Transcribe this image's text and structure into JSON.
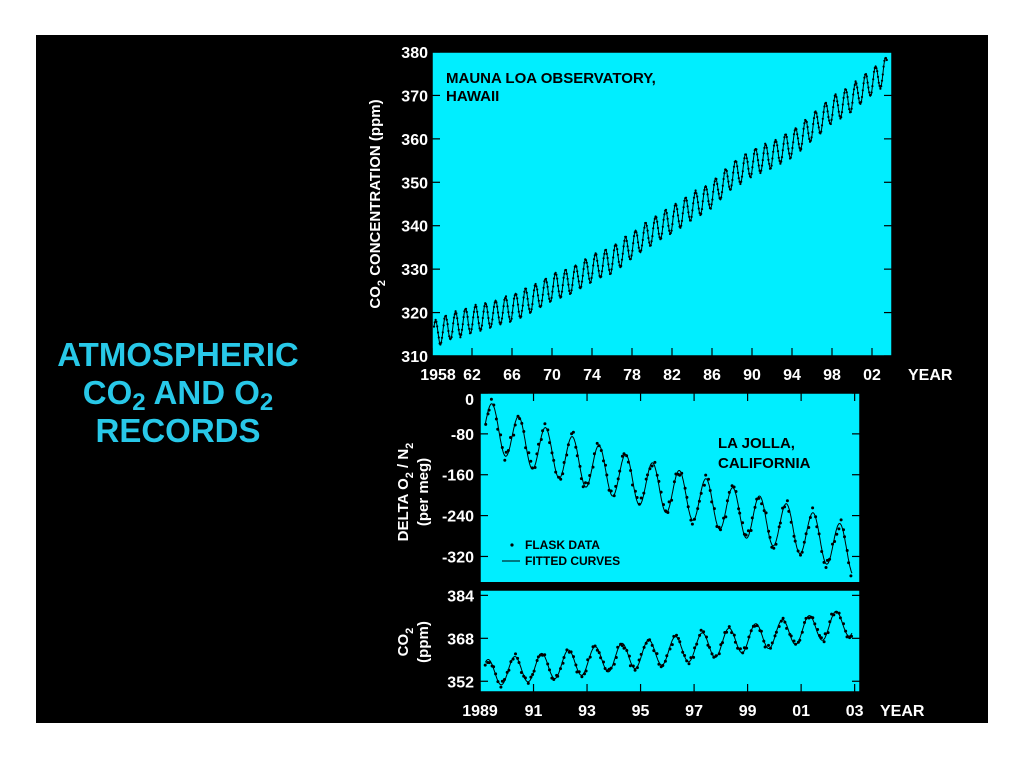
{
  "title": {
    "line1": "ATMOSPHERIC",
    "line2_a": "CO",
    "line2_sub1": "2",
    "line2_b": " AND O",
    "line2_sub2": "2",
    "line3": "RECORDS",
    "color": "#28c8e8"
  },
  "colors": {
    "background": "#000000",
    "plot_fill": "#00eeff",
    "ink": "#000000",
    "tick_text": "#ffffff"
  },
  "chart_data": [
    {
      "type": "line",
      "annotation_line1": "MAUNA LOA OBSERVATORY,",
      "annotation_line2": "HAWAII",
      "ylabel_pre": "CO",
      "ylabel_sub": "2",
      "ylabel_post": " CONCENTRATION (ppm)",
      "xlabel": "YEAR",
      "xlim": [
        1958,
        2004
      ],
      "ylim": [
        310,
        380
      ],
      "xticks": [
        1958,
        1962,
        1966,
        1970,
        1974,
        1978,
        1982,
        1986,
        1990,
        1994,
        1998,
        2002
      ],
      "xtick_labels": [
        "1958",
        "62",
        "66",
        "70",
        "74",
        "78",
        "82",
        "86",
        "90",
        "94",
        "98",
        "02"
      ],
      "yticks": [
        310,
        320,
        330,
        340,
        350,
        360,
        370,
        380
      ],
      "ytick_labels": [
        "310",
        "320",
        "330",
        "340",
        "350",
        "360",
        "370",
        "380"
      ],
      "series": [
        {
          "x": [
            1958.2,
            1960,
            1962,
            1964,
            1966,
            1968,
            1970,
            1972,
            1974,
            1976,
            1978,
            1980,
            1982,
            1984,
            1986,
            1988,
            1990,
            1992,
            1994,
            1996,
            1998,
            2000,
            2002,
            2003.5
          ],
          "y": [
            315.0,
            316.9,
            318.4,
            319.6,
            321.1,
            323.0,
            325.7,
            327.5,
            330.2,
            332.1,
            335.4,
            338.7,
            341.4,
            344.4,
            347.1,
            351.5,
            354.4,
            356.4,
            358.8,
            362.6,
            366.7,
            369.4,
            373.1,
            376.0
          ],
          "seasonal_amplitude": 3
        }
      ]
    },
    {
      "type": "scatter",
      "annotation_line1": "LA JOLLA,",
      "annotation_line2": "CALIFORNIA",
      "ylabel_line1_pre": "DELTA O",
      "ylabel_line1_sub1": "2",
      "ylabel_line1_mid": " / N",
      "ylabel_line1_sub2": "2",
      "ylabel_line2": "(per meg)",
      "xlim": [
        1989,
        2003.2
      ],
      "ylim": [
        -370,
        0
      ],
      "yticks": [
        0,
        -80,
        -160,
        -240,
        -320
      ],
      "ytick_labels": [
        "0",
        "-80",
        "-160",
        "-240",
        "-320"
      ],
      "legend": {
        "placement": "bottom-left",
        "flask_label": "FLASK DATA",
        "fit_label": "FITTED CURVES"
      },
      "trend": {
        "x": [
          1989.2,
          1991,
          1993,
          1995,
          1997,
          1999,
          2001,
          2002.9
        ],
        "y": [
          -60,
          -105,
          -140,
          -175,
          -205,
          -240,
          -270,
          -310
        ]
      },
      "seasonal_amplitude": 45
    },
    {
      "type": "scatter",
      "ylabel_line1_pre": "CO",
      "ylabel_line1_sub": "2",
      "ylabel_line2": "(ppm)",
      "xlabel": "YEAR",
      "xlim": [
        1989,
        2003.2
      ],
      "ylim": [
        348,
        386
      ],
      "xticks": [
        1989,
        1991,
        1993,
        1995,
        1997,
        1999,
        2001,
        2003
      ],
      "xtick_labels": [
        "1989",
        "91",
        "93",
        "95",
        "97",
        "99",
        "01",
        "03"
      ],
      "yticks": [
        352,
        368,
        384
      ],
      "ytick_labels": [
        "352",
        "368",
        "384"
      ],
      "trend": {
        "x": [
          1989.2,
          1991,
          1993,
          1995,
          1997,
          1999,
          2001,
          2002.9
        ],
        "y": [
          355,
          357,
          359.5,
          362,
          364.5,
          368,
          371,
          374
        ]
      },
      "seasonal_amplitude": 5
    }
  ]
}
